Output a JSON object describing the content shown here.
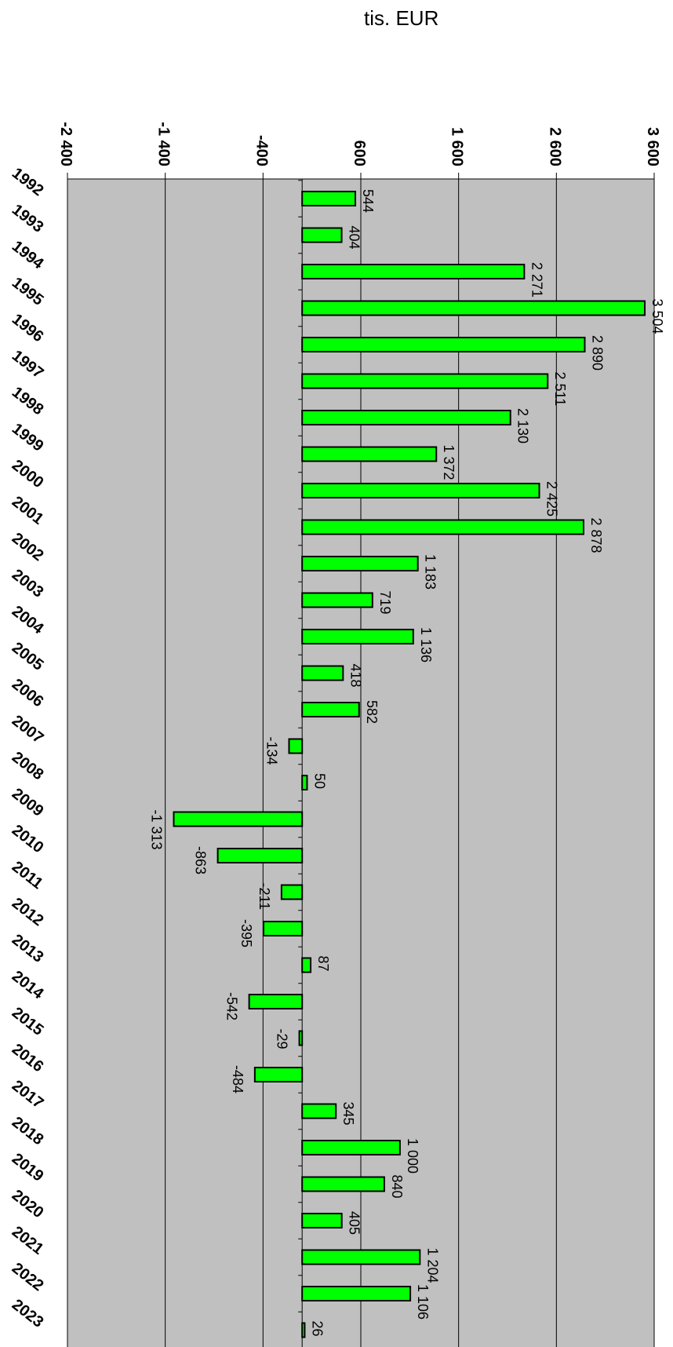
{
  "chart_data": {
    "type": "bar",
    "orientation": "rotated-90",
    "unit_label": "tis. EUR",
    "xlabel": "",
    "ylabel": "",
    "ylim": [
      -2400,
      3600
    ],
    "yticks": [
      -2400,
      -1400,
      -400,
      600,
      1600,
      2600,
      3600
    ],
    "ytick_labels": [
      "-2 400",
      "-1 400",
      "-400",
      "600",
      "1 600",
      "2 600",
      "3 600"
    ],
    "grid": true,
    "legend": "none",
    "categories": [
      "1992",
      "1993",
      "1994",
      "1995",
      "1996",
      "1997",
      "1998",
      "1999",
      "2000",
      "2001",
      "2002",
      "2003",
      "2004",
      "2005",
      "2006",
      "2007",
      "2008",
      "2009",
      "2010",
      "2011",
      "2012",
      "2013",
      "2014",
      "2015",
      "2016",
      "2017",
      "2018",
      "2019",
      "2020",
      "2021",
      "2022",
      "2023"
    ],
    "values": [
      544,
      404,
      2271,
      3504,
      2890,
      2511,
      2130,
      1372,
      2425,
      2878,
      1183,
      719,
      1136,
      418,
      582,
      -134,
      50,
      -1313,
      -863,
      -211,
      -395,
      87,
      -542,
      -29,
      -484,
      345,
      1000,
      840,
      405,
      1204,
      1106,
      26
    ],
    "value_labels": [
      "544",
      "404",
      "2 271",
      "3 504",
      "2 890",
      "2 511",
      "2 130",
      "1 372",
      "2 425",
      "2 878",
      "1 183",
      "719",
      "1 136",
      "418",
      "582",
      "-134",
      "50",
      "-1 313",
      "-863",
      "-211",
      "-395",
      "87",
      "-542",
      "-29",
      "-484",
      "345",
      "1 000",
      "840",
      "405",
      "1 204",
      "1 106",
      "26"
    ],
    "colors": {
      "bar_fill": "#00ff00",
      "bar_stroke": "#000000",
      "plot_bg": "#c0c0c0",
      "grid": "#000000"
    }
  }
}
